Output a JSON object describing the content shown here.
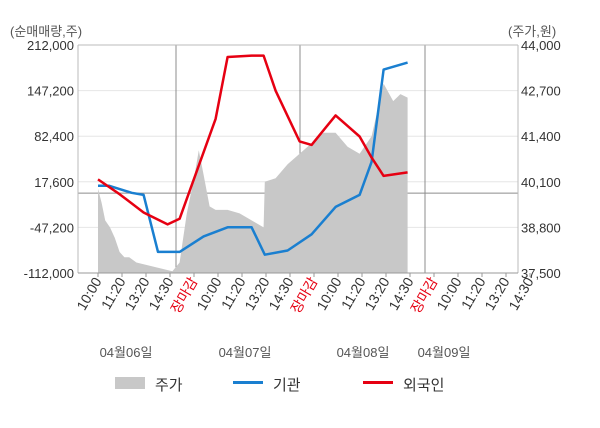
{
  "chart_data": {
    "type": "line",
    "left_unit": "(순매매량,주)",
    "right_unit": "(주가,원)",
    "y_left": {
      "ticks": [
        "212,000",
        "147,200",
        "82,400",
        "17,600",
        "-47,200",
        "-112,000"
      ],
      "range": [
        -112000,
        212000
      ]
    },
    "y_right": {
      "ticks": [
        "44,000",
        "42,700",
        "41,400",
        "40,100",
        "38,800",
        "37,500"
      ],
      "range": [
        37500,
        44000
      ]
    },
    "x_tick_labels": [
      "10:00",
      "11:20",
      "13:20",
      "14:30",
      "장마감",
      "10:00",
      "11:20",
      "13:20",
      "14:30",
      "장마감",
      "10:00",
      "11:20",
      "13:20",
      "14:30",
      "장마감",
      "10:00",
      "11:20",
      "13:20",
      "14:30"
    ],
    "close_label": "장마감",
    "dates": [
      "04월06일",
      "04월07일",
      "04월08일",
      "04월09일"
    ],
    "series": [
      {
        "name": "기관",
        "color": "#1a7fd0",
        "axis": "left",
        "values": [
          {
            "x": 0.0,
            "y": 12000
          },
          {
            "x": 0.45,
            "y": 12000
          },
          {
            "x": 1.4,
            "y": 2000
          },
          {
            "x": 1.9,
            "y": -1000
          },
          {
            "x": 2.5,
            "y": -82000
          },
          {
            "x": 3.4,
            "y": -82000
          },
          {
            "x": 4.4,
            "y": -60000
          },
          {
            "x": 5.4,
            "y": -47000
          },
          {
            "x": 6.4,
            "y": -47000
          },
          {
            "x": 6.95,
            "y": -86000
          },
          {
            "x": 7.9,
            "y": -80000
          },
          {
            "x": 8.9,
            "y": -57000
          },
          {
            "x": 9.9,
            "y": -18000
          },
          {
            "x": 10.9,
            "y": -1000
          },
          {
            "x": 11.4,
            "y": 46000
          },
          {
            "x": 11.9,
            "y": 177000
          },
          {
            "x": 12.9,
            "y": 187000
          }
        ]
      },
      {
        "name": "외국인",
        "color": "#e60012",
        "axis": "left",
        "values": [
          {
            "x": 0.0,
            "y": 21000
          },
          {
            "x": 0.9,
            "y": 0
          },
          {
            "x": 1.9,
            "y": -26000
          },
          {
            "x": 2.9,
            "y": -43000
          },
          {
            "x": 3.4,
            "y": -35000
          },
          {
            "x": 4.9,
            "y": 107000
          },
          {
            "x": 5.4,
            "y": 195000
          },
          {
            "x": 6.4,
            "y": 197000
          },
          {
            "x": 6.9,
            "y": 197000
          },
          {
            "x": 7.4,
            "y": 147000
          },
          {
            "x": 8.4,
            "y": 75000
          },
          {
            "x": 8.9,
            "y": 70000
          },
          {
            "x": 9.9,
            "y": 112000
          },
          {
            "x": 10.9,
            "y": 82000
          },
          {
            "x": 11.4,
            "y": 52000
          },
          {
            "x": 11.9,
            "y": 26000
          },
          {
            "x": 12.9,
            "y": 31000
          }
        ]
      }
    ],
    "price": {
      "name": "주가",
      "color": "#c8c8c8",
      "axis": "right",
      "values": [
        {
          "x": 0.0,
          "y": 39900
        },
        {
          "x": 0.15,
          "y": 39500
        },
        {
          "x": 0.3,
          "y": 39000
        },
        {
          "x": 0.5,
          "y": 38800
        },
        {
          "x": 0.7,
          "y": 38500
        },
        {
          "x": 0.9,
          "y": 38100
        },
        {
          "x": 1.1,
          "y": 37950
        },
        {
          "x": 1.3,
          "y": 37950
        },
        {
          "x": 1.6,
          "y": 37800
        },
        {
          "x": 1.9,
          "y": 37750
        },
        {
          "x": 2.2,
          "y": 37700
        },
        {
          "x": 2.5,
          "y": 37650
        },
        {
          "x": 2.8,
          "y": 37600
        },
        {
          "x": 3.1,
          "y": 37550
        },
        {
          "x": 3.4,
          "y": 37800
        },
        {
          "x": 3.7,
          "y": 39200
        },
        {
          "x": 4.0,
          "y": 40200
        },
        {
          "x": 4.2,
          "y": 41000
        },
        {
          "x": 4.4,
          "y": 40300
        },
        {
          "x": 4.65,
          "y": 39400
        },
        {
          "x": 4.9,
          "y": 39300
        },
        {
          "x": 5.4,
          "y": 39300
        },
        {
          "x": 5.9,
          "y": 39200
        },
        {
          "x": 6.4,
          "y": 39000
        },
        {
          "x": 6.9,
          "y": 38800
        },
        {
          "x": 6.95,
          "y": 40100
        },
        {
          "x": 7.4,
          "y": 40200
        },
        {
          "x": 7.9,
          "y": 40600
        },
        {
          "x": 8.4,
          "y": 40900
        },
        {
          "x": 8.9,
          "y": 41200
        },
        {
          "x": 9.4,
          "y": 41500
        },
        {
          "x": 9.9,
          "y": 41500
        },
        {
          "x": 10.4,
          "y": 41100
        },
        {
          "x": 10.9,
          "y": 40900
        },
        {
          "x": 11.4,
          "y": 41400
        },
        {
          "x": 11.9,
          "y": 42900
        },
        {
          "x": 12.3,
          "y": 42400
        },
        {
          "x": 12.6,
          "y": 42600
        },
        {
          "x": 12.9,
          "y": 42500
        }
      ]
    },
    "legend": [
      {
        "label": "주가",
        "kind": "area",
        "color": "#c8c8c8"
      },
      {
        "label": "기관",
        "kind": "line",
        "color": "#1a7fd0"
      },
      {
        "label": "외국인",
        "kind": "line",
        "color": "#e60012"
      }
    ],
    "grid": true,
    "legend_position": "bottom"
  }
}
